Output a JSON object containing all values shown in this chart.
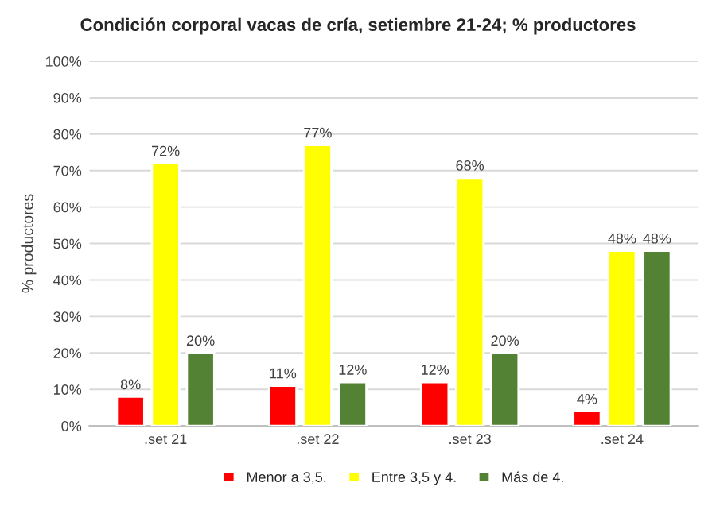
{
  "chart_data": {
    "type": "bar",
    "title": "Condición corporal vacas de cría, setiembre 21-24; % productores",
    "ylabel": "% productores",
    "categories": [
      ".set 21",
      ".set 22",
      ".set 23",
      ".set 24"
    ],
    "series": [
      {
        "name": "Menor a 3,5.",
        "color": "#ff0000",
        "values": [
          8,
          11,
          12,
          4
        ],
        "value_labels": [
          "8%",
          "11%",
          "12%",
          "4%"
        ]
      },
      {
        "name": "Entre 3,5 y 4.",
        "color": "#ffff00",
        "values": [
          72,
          77,
          68,
          48
        ],
        "value_labels": [
          "72%",
          "77%",
          "68%",
          "48%"
        ]
      },
      {
        "name": "Más de 4.",
        "color": "#548235",
        "values": [
          20,
          12,
          20,
          48
        ],
        "value_labels": [
          "20%",
          "12%",
          "20%",
          "48%"
        ]
      }
    ],
    "ylim": [
      0,
      100
    ],
    "yticks": [
      {
        "value": 0,
        "label": "0%"
      },
      {
        "value": 10,
        "label": "10%"
      },
      {
        "value": 20,
        "label": "20%"
      },
      {
        "value": 30,
        "label": "30%"
      },
      {
        "value": 40,
        "label": "40%"
      },
      {
        "value": 50,
        "label": "50%"
      },
      {
        "value": 60,
        "label": "60%"
      },
      {
        "value": 70,
        "label": "70%"
      },
      {
        "value": 80,
        "label": "80%"
      },
      {
        "value": 90,
        "label": "90%"
      },
      {
        "value": 100,
        "label": "100%"
      }
    ],
    "grid": "y",
    "legend": "bottom"
  }
}
